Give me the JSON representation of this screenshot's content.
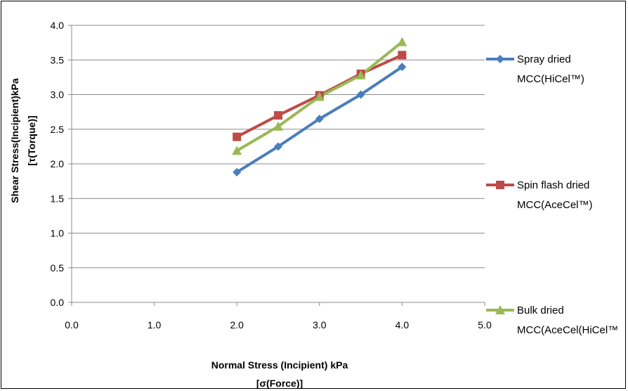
{
  "chart_data": {
    "type": "line",
    "xlabel": [
      "Normal Stress (Incipient) kPa",
      "[σ(Force)]"
    ],
    "ylabel": [
      "Shear Stress(Incipient)kPa",
      "[τ(Torque)]"
    ],
    "xlim": [
      0,
      5
    ],
    "ylim": [
      0,
      4
    ],
    "x_ticks": [
      "0.0",
      "1.0",
      "2.0",
      "3.0",
      "4.0",
      "5.0"
    ],
    "y_ticks": [
      "0.0",
      "0.5",
      "1.0",
      "1.5",
      "2.0",
      "2.5",
      "3.0",
      "3.5",
      "4.0"
    ],
    "grid": "horizontal",
    "legend_position": "right",
    "series": [
      {
        "name": [
          "Spray dried",
          "MCC(HiCel™)"
        ],
        "color": "#4a7ebb",
        "marker": "diamond",
        "x": [
          2.0,
          2.5,
          3.0,
          3.5,
          4.0
        ],
        "y": [
          1.88,
          2.25,
          2.65,
          3.0,
          3.4
        ]
      },
      {
        "name": [
          "Spin flash dried",
          "MCC(AceCel™)"
        ],
        "color": "#be4b48",
        "marker": "square",
        "x": [
          2.0,
          2.5,
          3.0,
          3.5,
          4.0
        ],
        "y": [
          2.39,
          2.7,
          2.99,
          3.3,
          3.57
        ]
      },
      {
        "name": [
          "Bulk dried",
          "MCC(AceCel(HiCel™"
        ],
        "color": "#98b954",
        "marker": "triangle",
        "x": [
          2.0,
          2.5,
          3.0,
          3.5,
          4.0
        ],
        "y": [
          2.19,
          2.54,
          2.97,
          3.28,
          3.76
        ]
      }
    ]
  }
}
